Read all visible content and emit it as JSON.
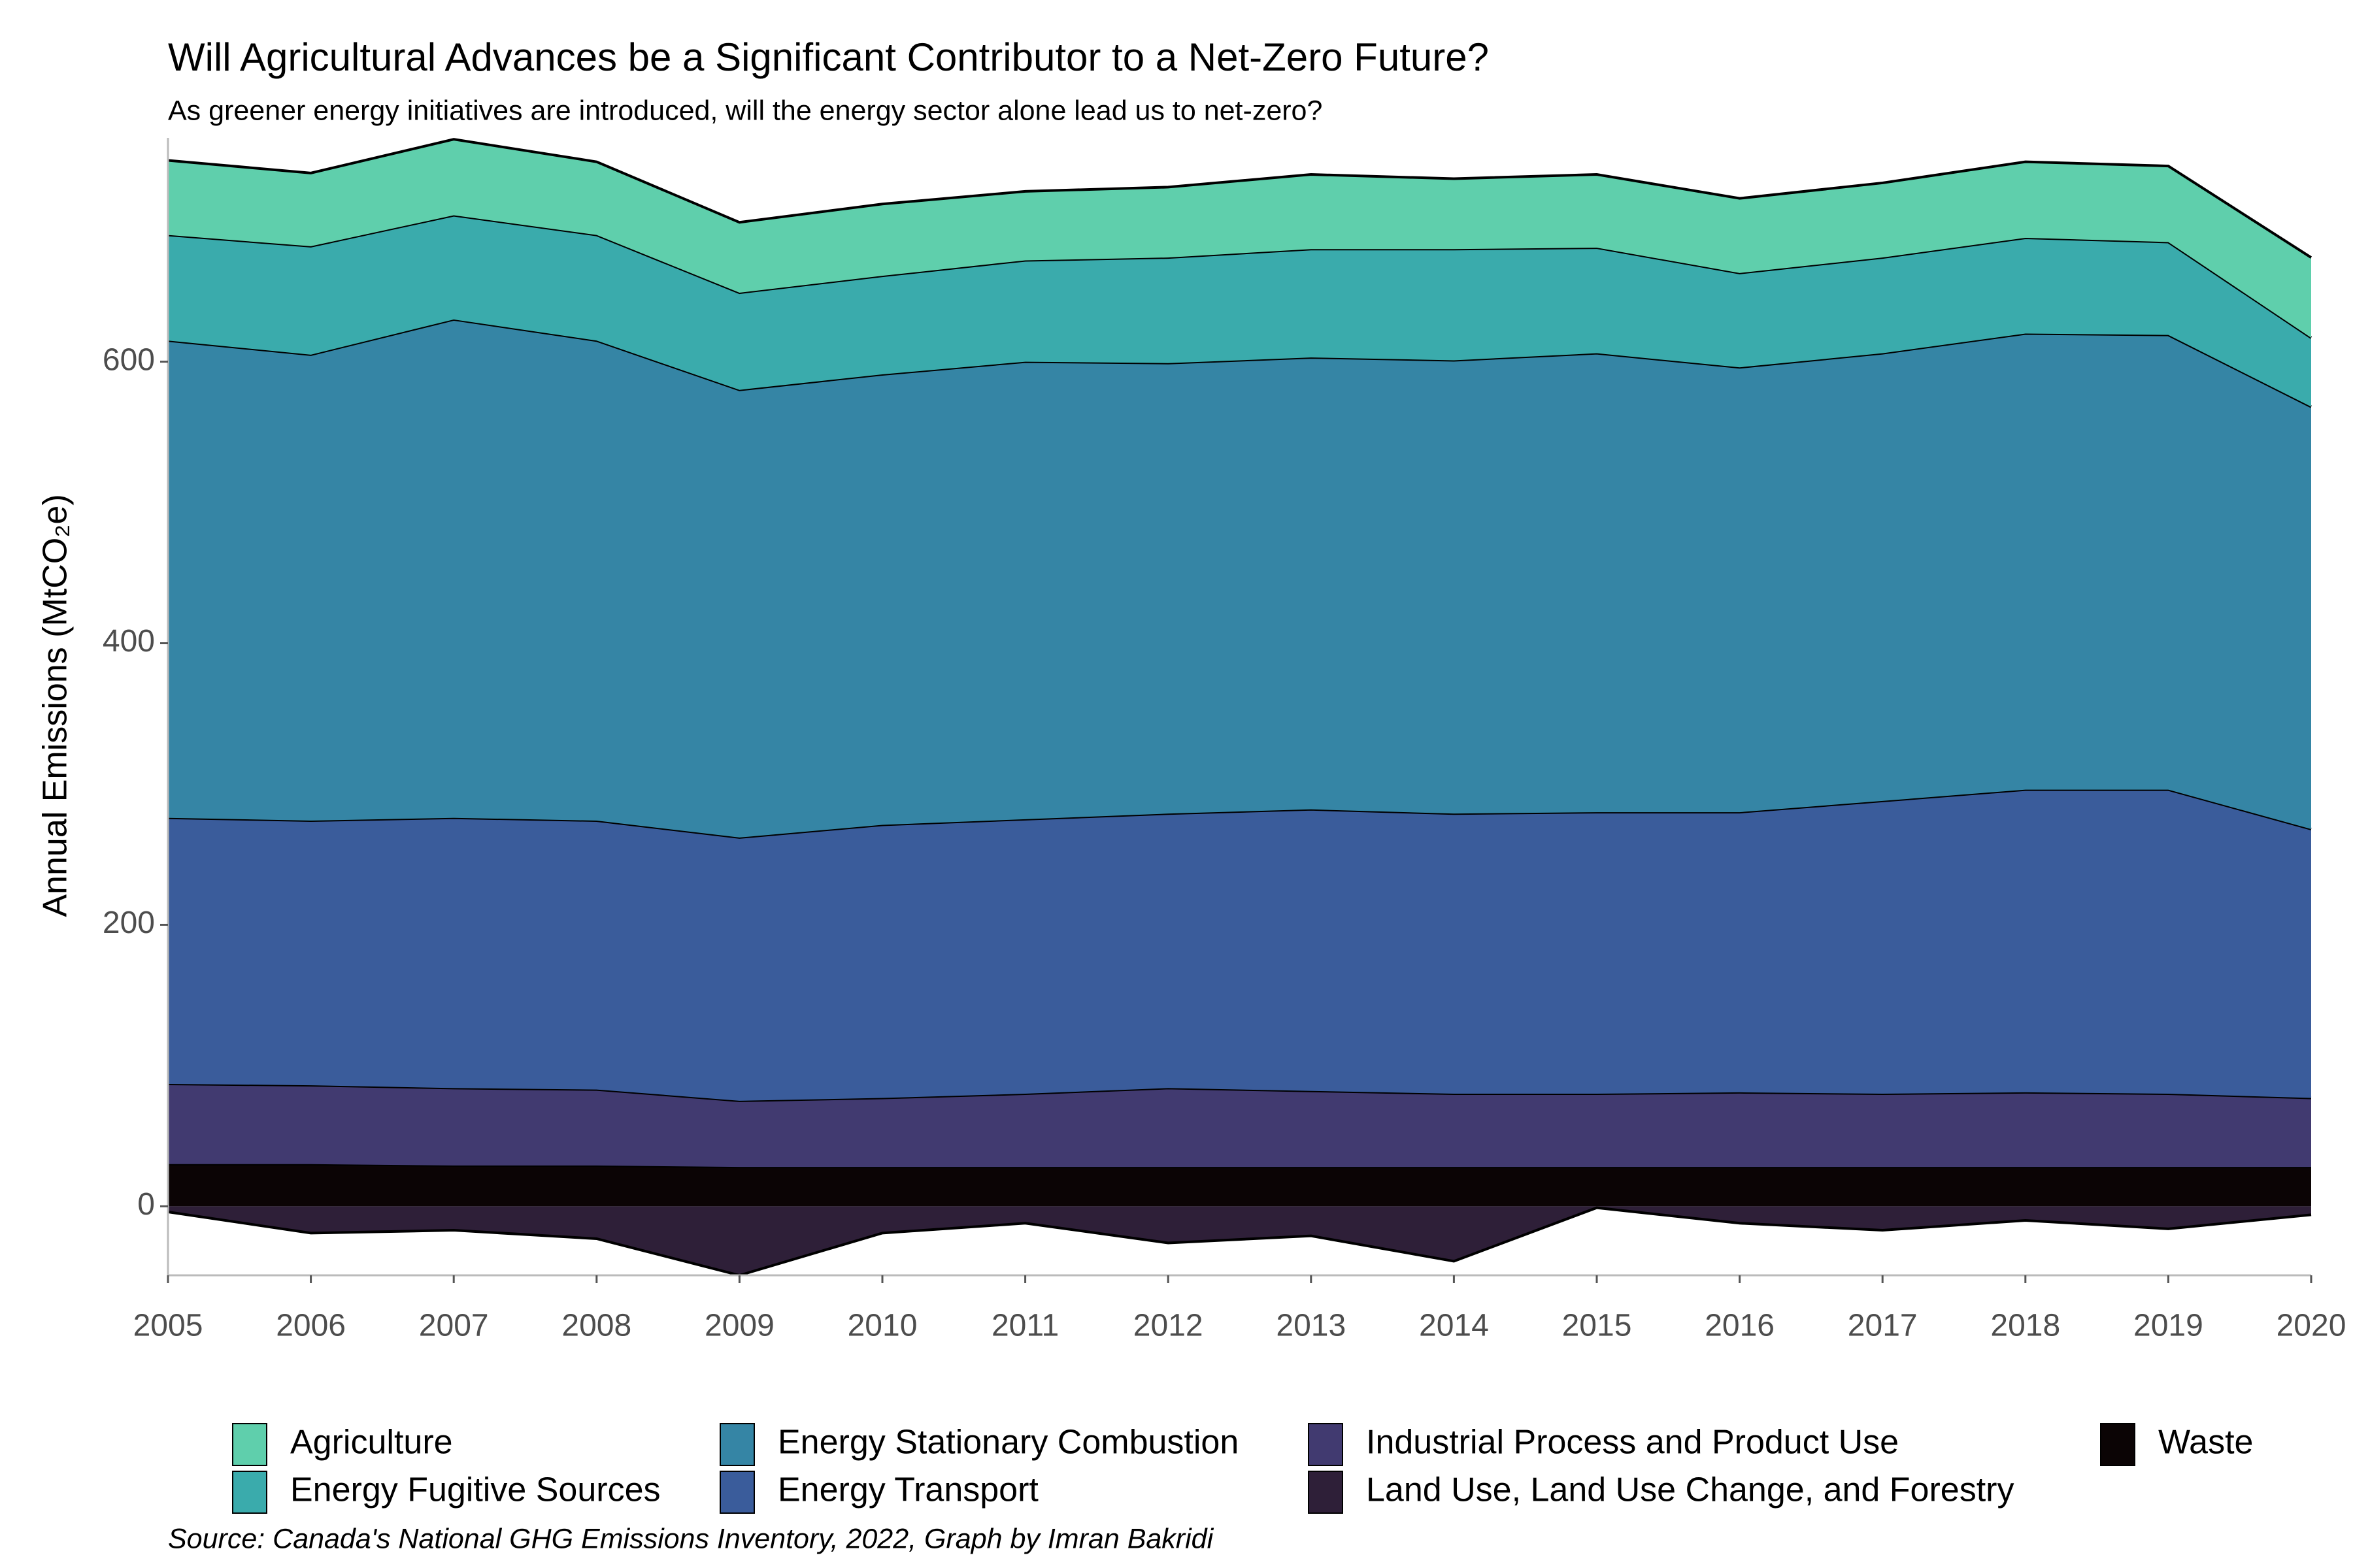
{
  "chart_data": {
    "type": "area",
    "title": "Will Agricultural Advances be a Significant Contributor to a Net-Zero Future?",
    "subtitle": "As greener energy initiatives are introduced, will the energy sector alone lead us to net-zero?",
    "y_label": "Annual Emissions (MtCO₂e)",
    "caption": "Source: Canada's National GHG Emissions Inventory, 2022, Graph by Imran Bakridi",
    "x": [
      2005,
      2006,
      2007,
      2008,
      2009,
      2010,
      2011,
      2012,
      2013,
      2014,
      2015,
      2016,
      2017,
      2018,
      2019,
      2020
    ],
    "xlim": [
      2005,
      2020
    ],
    "xticks": [
      2005,
      2006,
      2007,
      2008,
      2009,
      2010,
      2011,
      2012,
      2013,
      2014,
      2015,
      2016,
      2017,
      2018,
      2019,
      2020
    ],
    "ylim": [
      -49,
      759
    ],
    "yticks": [
      0,
      200,
      400,
      600
    ],
    "stacked": true,
    "series": [
      {
        "name": "Agriculture",
        "color": "#5fcfac",
        "values": [
          53,
          52,
          54,
          52,
          50,
          51,
          49,
          50,
          53,
          50,
          52,
          53,
          53,
          54,
          54,
          57
        ]
      },
      {
        "name": "Energy Fugitive Sources",
        "color": "#3aabac",
        "values": [
          75,
          77,
          74,
          75,
          69,
          70,
          72,
          75,
          77,
          79,
          75,
          67,
          68,
          68,
          66,
          49
        ]
      },
      {
        "name": "Energy Stationary Combustion",
        "color": "#3585a5",
        "values": [
          339,
          331,
          354,
          341,
          318,
          320,
          325,
          320,
          321,
          322,
          326,
          316,
          318,
          324,
          323,
          300
        ]
      },
      {
        "name": "Energy Transport",
        "color": "#3a5c9b",
        "values": [
          189,
          188,
          192,
          191,
          187,
          194,
          195,
          195,
          200,
          199,
          200,
          199,
          208,
          215,
          216,
          191
        ]
      },
      {
        "name": "Industrial Process and Product Use",
        "color": "#413a70",
        "values": [
          57,
          56,
          55,
          54,
          47,
          49,
          52,
          56,
          54,
          52,
          52,
          53,
          52,
          53,
          52,
          49
        ]
      },
      {
        "name": "Land Use, Land Use Change, and Forestry",
        "color": "#2e1f38",
        "values": [
          -4,
          -19,
          -17,
          -23,
          -49,
          -19,
          -12,
          -26,
          -21,
          -39,
          -1,
          -12,
          -17,
          -10,
          -16,
          -6
        ]
      },
      {
        "name": "Waste",
        "color": "#0b0405",
        "values": [
          30,
          30,
          29,
          29,
          28,
          28,
          28,
          28,
          28,
          28,
          28,
          28,
          28,
          28,
          28,
          28
        ]
      }
    ]
  }
}
